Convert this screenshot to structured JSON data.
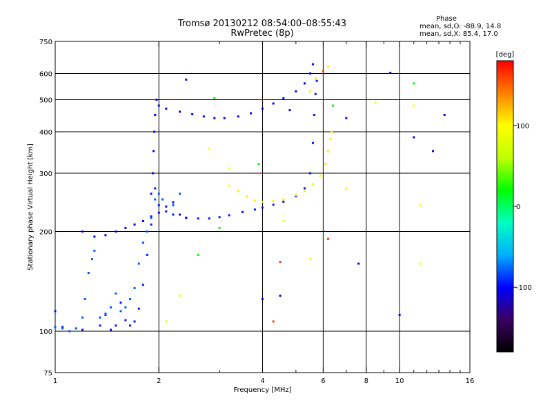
{
  "chart_data": {
    "type": "scatter",
    "title": "Tromsø 20130212 08:54:00–08:55:43",
    "subtitle": "RwPretec (8p)",
    "xlabel": "Frequency [MHz]",
    "ylabel": "Stationary phase Virtual Height [km]",
    "x_scale": "log",
    "y_scale": "log",
    "xlim": [
      1,
      16
    ],
    "ylim": [
      75,
      750
    ],
    "x_ticks": [
      1,
      2,
      4,
      6,
      8,
      10,
      16
    ],
    "x_minor_ticks": [
      3,
      5,
      7,
      9,
      11,
      12,
      13,
      14,
      15
    ],
    "y_ticks": [
      75,
      100,
      200,
      300,
      400,
      500,
      600,
      750
    ],
    "grid": true,
    "colorbar": {
      "label": "[deg]",
      "range": [
        -180,
        180
      ],
      "ticks": [
        100,
        0,
        -100
      ],
      "colors": [
        "#000000",
        "#3a0060",
        "#0000ff",
        "#00b0ff",
        "#00ffc0",
        "#00ff00",
        "#c0ff00",
        "#ffff00",
        "#ff8000",
        "#ff0000"
      ]
    },
    "phase_stats": {
      "heading": "Phase",
      "o_line": "mean, sd,O: -88.9, 14.8",
      "x_line": "mean, sd,X: 85.4, 17.0"
    },
    "series": [
      {
        "phase_deg": -95,
        "mode": "O",
        "points": [
          [
            1.0,
            115
          ],
          [
            1.05,
            103
          ],
          [
            1.2,
            101
          ],
          [
            1.35,
            104
          ],
          [
            1.4,
            112
          ],
          [
            1.45,
            101
          ],
          [
            1.5,
            104
          ],
          [
            1.55,
            122
          ],
          [
            1.6,
            108
          ],
          [
            1.65,
            104
          ],
          [
            1.7,
            107
          ],
          [
            1.75,
            117
          ],
          [
            1.8,
            138
          ],
          [
            1.85,
            170
          ],
          [
            1.9,
            210
          ],
          [
            1.95,
            270
          ],
          [
            2.0,
            240
          ],
          [
            2.1,
            230
          ],
          [
            2.2,
            225
          ],
          [
            2.4,
            220
          ],
          [
            2.6,
            219
          ],
          [
            2.8,
            219
          ],
          [
            3.0,
            221
          ],
          [
            3.2,
            224
          ],
          [
            3.5,
            229
          ],
          [
            3.8,
            233
          ],
          [
            4.0,
            236
          ],
          [
            4.3,
            241
          ],
          [
            4.6,
            246
          ],
          [
            5.0,
            256
          ],
          [
            5.3,
            270
          ],
          [
            5.5,
            300
          ],
          [
            5.6,
            370
          ],
          [
            5.65,
            450
          ],
          [
            5.7,
            520
          ],
          [
            5.75,
            570
          ]
        ]
      },
      {
        "phase_deg": -100,
        "mode": "F-layer",
        "points": [
          [
            1.2,
            200
          ],
          [
            1.3,
            193
          ],
          [
            1.4,
            195
          ],
          [
            1.5,
            200
          ],
          [
            1.6,
            205
          ],
          [
            1.7,
            210
          ],
          [
            1.8,
            215
          ],
          [
            1.9,
            222
          ],
          [
            2.0,
            228
          ],
          [
            2.1,
            238
          ],
          [
            2.2,
            245
          ],
          [
            2.3,
            225
          ],
          [
            2.4,
            220
          ],
          [
            1.9,
            260
          ],
          [
            1.92,
            300
          ],
          [
            1.93,
            350
          ],
          [
            1.94,
            400
          ],
          [
            1.95,
            450
          ],
          [
            1.97,
            500
          ],
          [
            2.0,
            480
          ],
          [
            2.1,
            470
          ],
          [
            2.3,
            460
          ],
          [
            2.5,
            452
          ],
          [
            2.7,
            445
          ],
          [
            2.9,
            440
          ],
          [
            3.1,
            440
          ],
          [
            3.4,
            445
          ],
          [
            3.7,
            455
          ],
          [
            4.0,
            470
          ],
          [
            4.3,
            487
          ],
          [
            4.6,
            505
          ],
          [
            5.0,
            530
          ],
          [
            5.3,
            560
          ],
          [
            5.5,
            600
          ],
          [
            5.6,
            640
          ]
        ]
      },
      {
        "phase_deg": -80,
        "mode": "lower",
        "points": [
          [
            1.0,
            103
          ],
          [
            1.05,
            102
          ],
          [
            1.1,
            100
          ],
          [
            1.15,
            102
          ],
          [
            1.2,
            110
          ],
          [
            1.22,
            125
          ],
          [
            1.25,
            150
          ],
          [
            1.28,
            165
          ],
          [
            1.3,
            175
          ],
          [
            1.35,
            110
          ],
          [
            1.4,
            113
          ],
          [
            1.45,
            118
          ],
          [
            1.5,
            130
          ],
          [
            1.55,
            115
          ],
          [
            1.6,
            118
          ],
          [
            1.65,
            125
          ],
          [
            1.7,
            135
          ],
          [
            1.75,
            160
          ],
          [
            1.8,
            185
          ],
          [
            1.85,
            200
          ],
          [
            1.9,
            220
          ],
          [
            1.95,
            250
          ],
          [
            2.0,
            260
          ],
          [
            2.05,
            250
          ],
          [
            2.2,
            240
          ],
          [
            2.3,
            260
          ]
        ]
      },
      {
        "phase_deg": 105,
        "mode": "X",
        "points": [
          [
            3.2,
            275
          ],
          [
            3.4,
            265
          ],
          [
            3.6,
            255
          ],
          [
            3.8,
            248
          ],
          [
            4.0,
            246
          ],
          [
            4.3,
            247
          ],
          [
            4.6,
            250
          ],
          [
            5.0,
            258
          ],
          [
            5.3,
            265
          ],
          [
            5.6,
            278
          ],
          [
            5.9,
            295
          ],
          [
            6.1,
            320
          ],
          [
            6.2,
            350
          ],
          [
            6.3,
            380
          ],
          [
            6.35,
            400
          ],
          [
            5.5,
            530
          ],
          [
            5.7,
            580
          ],
          [
            6.0,
            610
          ],
          [
            6.2,
            630
          ]
        ]
      },
      {
        "phase_deg": 160,
        "mode": "noise",
        "points": [
          [
            6.0,
            610
          ],
          [
            6.2,
            190
          ],
          [
            4.5,
            162
          ],
          [
            4.3,
            107
          ]
        ]
      },
      {
        "phase_deg": -105,
        "mode": "noise",
        "points": [
          [
            4.0,
            125
          ],
          [
            4.5,
            128
          ],
          [
            7.6,
            160
          ],
          [
            9.4,
            603
          ],
          [
            11.0,
            385
          ],
          [
            12.5,
            350
          ],
          [
            13.5,
            450
          ],
          [
            10.0,
            112
          ],
          [
            2.4,
            575
          ],
          [
            7.0,
            440
          ],
          [
            4.8,
            465
          ]
        ]
      },
      {
        "phase_deg": 95,
        "mode": "noise",
        "points": [
          [
            8.5,
            490
          ],
          [
            11.0,
            480
          ],
          [
            11.5,
            160
          ],
          [
            11.5,
            240
          ],
          [
            2.8,
            355
          ],
          [
            2.1,
            107
          ],
          [
            2.3,
            128
          ],
          [
            3.2,
            310
          ],
          [
            4.6,
            215
          ],
          [
            7.0,
            270
          ],
          [
            5.5,
            165
          ]
        ]
      },
      {
        "phase_deg": 20,
        "mode": "noise",
        "points": [
          [
            2.9,
            505
          ],
          [
            3.9,
            320
          ],
          [
            3.0,
            205
          ],
          [
            6.4,
            480
          ],
          [
            11.0,
            560
          ],
          [
            2.6,
            170
          ]
        ]
      }
    ]
  }
}
